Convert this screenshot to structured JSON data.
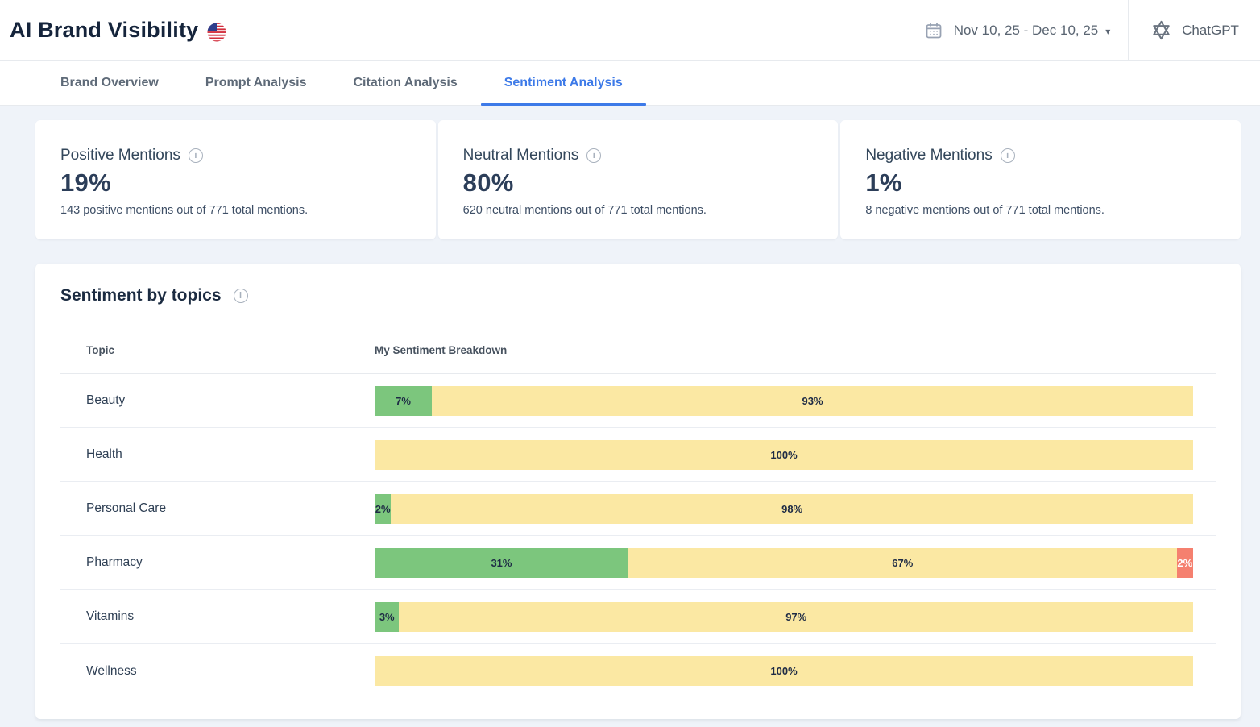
{
  "header": {
    "title": "AI Brand Visibility",
    "date_range": "Nov 10, 25 - Dec 10, 25",
    "model": "ChatGPT"
  },
  "tabs": [
    {
      "label": "Brand Overview",
      "active": false
    },
    {
      "label": "Prompt Analysis",
      "active": false
    },
    {
      "label": "Citation Analysis",
      "active": false
    },
    {
      "label": "Sentiment Analysis",
      "active": true
    }
  ],
  "stats": [
    {
      "title": "Positive Mentions",
      "value": "19%",
      "description": "143 positive mentions out of 771 total mentions."
    },
    {
      "title": "Neutral Mentions",
      "value": "80%",
      "description": "620 neutral mentions out of 771 total mentions."
    },
    {
      "title": "Negative Mentions",
      "value": "1%",
      "description": "8 negative mentions out of 771 total mentions."
    }
  ],
  "sentiment_by_topics": {
    "title": "Sentiment by topics",
    "columns": {
      "topic": "Topic",
      "breakdown": "My Sentiment Breakdown"
    },
    "rows": [
      {
        "topic": "Beauty",
        "positive": 7,
        "neutral": 93,
        "negative": 0
      },
      {
        "topic": "Health",
        "positive": 0,
        "neutral": 100,
        "negative": 0
      },
      {
        "topic": "Personal Care",
        "positive": 2,
        "neutral": 98,
        "negative": 0
      },
      {
        "topic": "Pharmacy",
        "positive": 31,
        "neutral": 67,
        "negative": 2
      },
      {
        "topic": "Vitamins",
        "positive": 3,
        "neutral": 97,
        "negative": 0
      },
      {
        "topic": "Wellness",
        "positive": 0,
        "neutral": 100,
        "negative": 0
      }
    ]
  },
  "chart_data": {
    "type": "bar",
    "stacked": true,
    "orientation": "horizontal",
    "categories": [
      "Beauty",
      "Health",
      "Personal Care",
      "Pharmacy",
      "Vitamins",
      "Wellness"
    ],
    "series": [
      {
        "name": "Positive",
        "values": [
          7,
          0,
          2,
          31,
          3,
          0
        ]
      },
      {
        "name": "Neutral",
        "values": [
          93,
          100,
          98,
          67,
          97,
          100
        ]
      },
      {
        "name": "Negative",
        "values": [
          0,
          0,
          0,
          2,
          0,
          0
        ]
      }
    ],
    "title": "Sentiment by topics",
    "xlabel": "My Sentiment Breakdown",
    "ylabel": "Topic",
    "xlim": [
      0,
      100
    ],
    "unit": "%"
  },
  "colors": {
    "positive": "#7CC67D",
    "neutral": "#FBE8A3",
    "negative": "#F5806F",
    "accent_blue": "#3D7AE8"
  },
  "icons": {
    "info_glyph": "i",
    "caret_glyph": "▾"
  }
}
